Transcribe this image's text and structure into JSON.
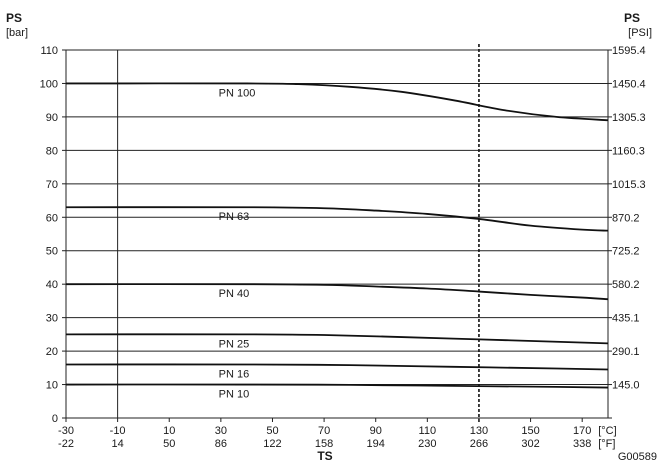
{
  "chart_data": {
    "type": "line",
    "title": "",
    "y_left": {
      "label": "PS",
      "unit": "[bar]",
      "ticks": [
        0,
        10,
        20,
        30,
        40,
        50,
        60,
        70,
        80,
        90,
        100,
        110
      ],
      "range": [
        0,
        110
      ]
    },
    "y_right": {
      "label": "PS",
      "unit": "[PSI]",
      "ticks": [
        {
          "at": 10,
          "label": "145.0"
        },
        {
          "at": 20,
          "label": "290.1"
        },
        {
          "at": 30,
          "label": "435.1"
        },
        {
          "at": 40,
          "label": "580.2"
        },
        {
          "at": 50,
          "label": "725.2"
        },
        {
          "at": 60,
          "label": "870.2"
        },
        {
          "at": 70,
          "label": "1015.3"
        },
        {
          "at": 80,
          "label": "1160.3"
        },
        {
          "at": 90,
          "label": "1305.3"
        },
        {
          "at": 100,
          "label": "1450.4"
        },
        {
          "at": 110,
          "label": "1595.4"
        }
      ]
    },
    "x": {
      "label": "TS",
      "range": [
        -30,
        180
      ],
      "ticks_c": [
        -30,
        -10,
        10,
        30,
        50,
        70,
        90,
        110,
        130,
        150,
        170
      ],
      "ticks_f": [
        -22,
        14,
        50,
        86,
        122,
        158,
        194,
        230,
        266,
        302,
        338
      ],
      "unit_c": "[°C]",
      "unit_f": "[°F]"
    },
    "vertical_line_at": -10,
    "dashed_line_at": 130,
    "grid": true,
    "series": [
      {
        "name": "PN 100",
        "label_at": [
          40,
          100
        ],
        "x": [
          -30,
          40,
          60,
          80,
          100,
          120,
          140,
          160,
          180
        ],
        "y": [
          100,
          100,
          99.8,
          99,
          97.5,
          95,
          92,
          90,
          89
        ]
      },
      {
        "name": "PN 63",
        "label_at": [
          40,
          63
        ],
        "x": [
          -30,
          40,
          70,
          90,
          110,
          130,
          150,
          170,
          180
        ],
        "y": [
          63,
          63,
          62.7,
          62,
          61,
          59.5,
          57.5,
          56.3,
          56
        ]
      },
      {
        "name": "PN 40",
        "label_at": [
          40,
          40
        ],
        "x": [
          -30,
          40,
          70,
          90,
          110,
          130,
          150,
          170,
          180
        ],
        "y": [
          40,
          40,
          39.8,
          39.3,
          38.7,
          37.8,
          36.8,
          36,
          35.5
        ]
      },
      {
        "name": "PN 25",
        "label_at": [
          40,
          25
        ],
        "x": [
          -30,
          40,
          70,
          100,
          130,
          160,
          180
        ],
        "y": [
          25,
          25,
          24.8,
          24.2,
          23.5,
          22.8,
          22.3
        ]
      },
      {
        "name": "PN 16",
        "label_at": [
          40,
          16
        ],
        "x": [
          -30,
          40,
          80,
          120,
          160,
          180
        ],
        "y": [
          16,
          16,
          15.8,
          15.3,
          14.8,
          14.5
        ]
      },
      {
        "name": "PN 10",
        "label_at": [
          40,
          10
        ],
        "x": [
          -30,
          40,
          80,
          120,
          160,
          180
        ],
        "y": [
          10,
          10,
          9.9,
          9.6,
          9.3,
          9.1
        ]
      }
    ]
  },
  "figure_code": "G00589"
}
